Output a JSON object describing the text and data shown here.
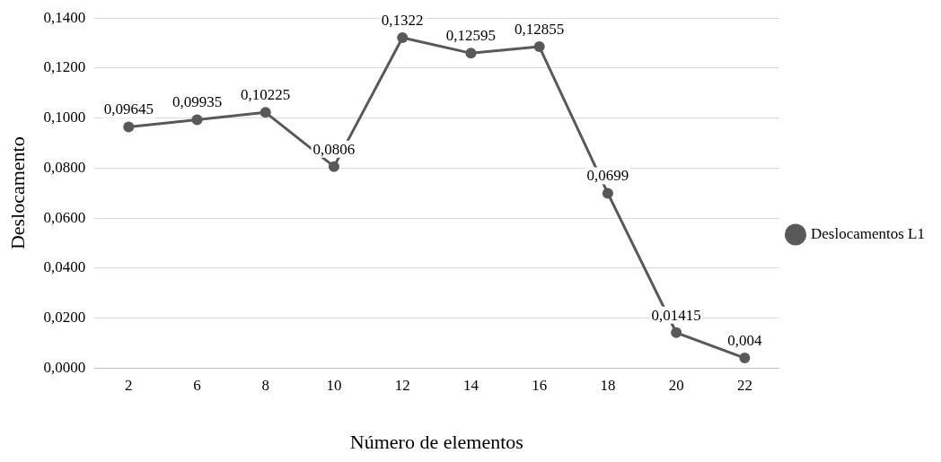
{
  "chart_data": {
    "type": "line",
    "xlabel": "Número de elementos",
    "ylabel": "Deslocamento",
    "categories": [
      "2",
      "6",
      "8",
      "10",
      "12",
      "14",
      "16",
      "18",
      "20",
      "22"
    ],
    "series": [
      {
        "name": "Deslocamentos L1",
        "color": "#595959",
        "values": [
          0.09645,
          0.09935,
          0.10225,
          0.0806,
          0.1322,
          0.12595,
          0.12855,
          0.0699,
          0.01415,
          0.004
        ],
        "value_labels": [
          "0,09645",
          "0,09935",
          "0,10225",
          "0,0806",
          "0,1322",
          "0,12595",
          "0,12855",
          "0,0699",
          "0,01415",
          "0,004"
        ]
      }
    ],
    "ylim": [
      0,
      0.14
    ],
    "yticks": [
      {
        "value": 0,
        "label": "0,0000"
      },
      {
        "value": 0.02,
        "label": "0,0200"
      },
      {
        "value": 0.04,
        "label": "0,0400"
      },
      {
        "value": 0.06,
        "label": "0,0600"
      },
      {
        "value": 0.08,
        "label": "0,0800"
      },
      {
        "value": 0.1,
        "label": "0,1000"
      },
      {
        "value": 0.12,
        "label": "0,1200"
      },
      {
        "value": 0.14,
        "label": "0,1400"
      }
    ],
    "grid": "y",
    "legend": "right",
    "marker": "circle",
    "line_style": "solid"
  }
}
